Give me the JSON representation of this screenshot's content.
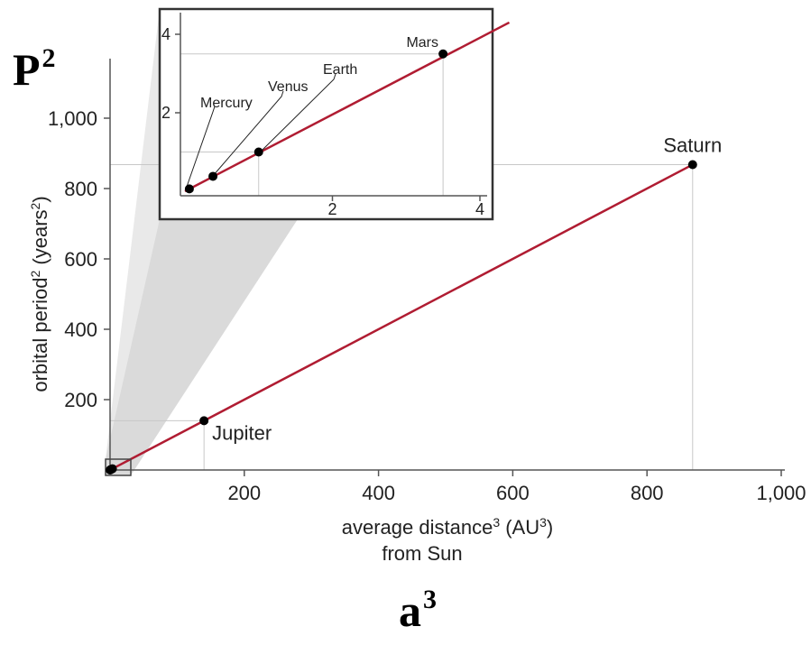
{
  "overlay": {
    "p2": {
      "base": "P",
      "exp": "2"
    },
    "a3": {
      "base": "a",
      "exp": "3"
    }
  },
  "colors": {
    "fit_line": "#b01c32",
    "point": "#000000",
    "axis": "#555555",
    "guide": "#c8c8c8",
    "wedge": "#d6d6d6",
    "inset_border": "#333333"
  },
  "chart_data": [
    {
      "type": "line",
      "title": "",
      "xlabel": {
        "line1_prefix": "average distance",
        "sup1": "3",
        "line1_mid": " (AU",
        "sup2": "3",
        "line1_suffix": ")",
        "line2": "from Sun"
      },
      "ylabel": {
        "prefix": "orbital period",
        "sup1": "2",
        "mid": " (years",
        "sup2": "2",
        "suffix": ")"
      },
      "xlim": [
        0,
        1000
      ],
      "ylim": [
        0,
        1000
      ],
      "xticks": [
        {
          "value": 200,
          "label": "200"
        },
        {
          "value": 400,
          "label": "400"
        },
        {
          "value": 600,
          "label": "600"
        },
        {
          "value": 800,
          "label": "800"
        },
        {
          "value": 1000,
          "label": "1,000"
        }
      ],
      "yticks": [
        {
          "value": 200,
          "label": "200"
        },
        {
          "value": 400,
          "label": "400"
        },
        {
          "value": 600,
          "label": "600"
        },
        {
          "value": 800,
          "label": "800"
        },
        {
          "value": 1000,
          "label": "1,000"
        }
      ],
      "series": [
        {
          "points": [
            {
              "label": "Mercury",
              "x": 0.06,
              "y": 0.06
            },
            {
              "label": "Venus",
              "x": 0.38,
              "y": 0.38
            },
            {
              "label": "Earth",
              "x": 1,
              "y": 1
            },
            {
              "label": "Mars",
              "x": 3.5,
              "y": 3.5
            },
            {
              "label": "Jupiter",
              "x": 140,
              "y": 140
            },
            {
              "label": "Saturn",
              "x": 868,
              "y": 868
            }
          ]
        }
      ],
      "fit_line": {
        "from": [
          0,
          0
        ],
        "to": [
          868,
          868
        ]
      }
    },
    {
      "type": "line",
      "title": "",
      "xlim": [
        0,
        4
      ],
      "ylim": [
        0,
        4
      ],
      "xticks": [
        {
          "value": 2,
          "label": "2"
        },
        {
          "value": 4,
          "label": "4"
        }
      ],
      "yticks": [
        {
          "value": 2,
          "label": "2"
        },
        {
          "value": 4,
          "label": "4"
        }
      ],
      "series": [
        {
          "points": [
            {
              "label": "Mercury",
              "x": 0.06,
              "y": 0.06
            },
            {
              "label": "Venus",
              "x": 0.38,
              "y": 0.38
            },
            {
              "label": "Earth",
              "x": 1,
              "y": 1
            },
            {
              "label": "Mars",
              "x": 3.5,
              "y": 3.5
            }
          ]
        }
      ],
      "fit_line": {
        "from": [
          0,
          0
        ],
        "to": [
          4.3,
          4.3
        ]
      }
    }
  ]
}
